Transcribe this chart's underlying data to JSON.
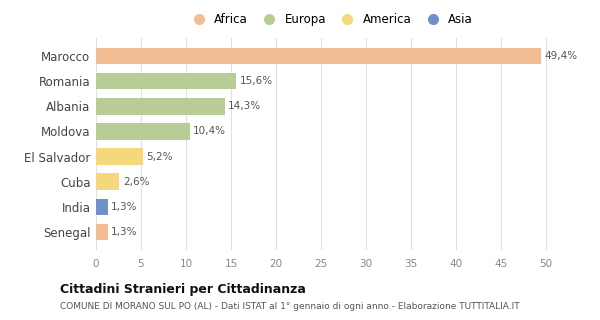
{
  "countries": [
    "Marocco",
    "Romania",
    "Albania",
    "Moldova",
    "El Salvador",
    "Cuba",
    "India",
    "Senegal"
  ],
  "values": [
    49.4,
    15.6,
    14.3,
    10.4,
    5.2,
    2.6,
    1.3,
    1.3
  ],
  "labels": [
    "49,4%",
    "15,6%",
    "14,3%",
    "10,4%",
    "5,2%",
    "2,6%",
    "1,3%",
    "1,3%"
  ],
  "colors": [
    "#f2bc94",
    "#b8cc96",
    "#b8cc96",
    "#b8cc96",
    "#f5d87c",
    "#f5d87c",
    "#7090c8",
    "#f2bc94"
  ],
  "legend_labels": [
    "Africa",
    "Europa",
    "America",
    "Asia"
  ],
  "legend_colors": [
    "#f2bc94",
    "#b8cc96",
    "#f5d87c",
    "#7090c8"
  ],
  "xlim": [
    0,
    52
  ],
  "xticks": [
    0,
    5,
    10,
    15,
    20,
    25,
    30,
    35,
    40,
    45,
    50
  ],
  "title": "Cittadini Stranieri per Cittadinanza",
  "subtitle": "COMUNE DI MORANO SUL PO (AL) - Dati ISTAT al 1° gennaio di ogni anno - Elaborazione TUTTITALIA.IT",
  "bg_color": "#ffffff",
  "grid_color": "#e0e0e0"
}
